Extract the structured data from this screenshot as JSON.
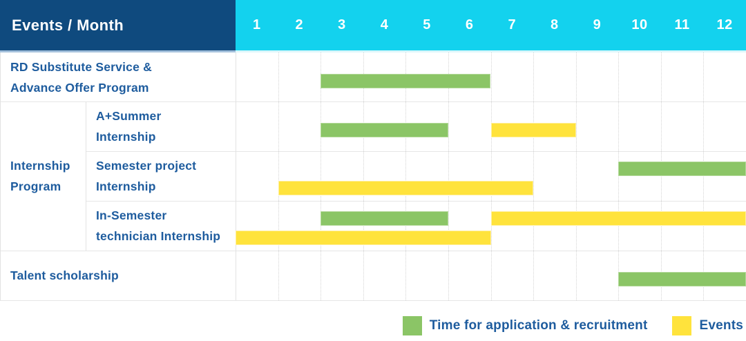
{
  "table": {
    "corner_title": "Events / Month",
    "months": [
      "1",
      "2",
      "3",
      "4",
      "5",
      "6",
      "7",
      "8",
      "9",
      "10",
      "11",
      "12"
    ],
    "rows": {
      "rd_program": {
        "line1": "RD Substitute Service &",
        "line2": "Advance Offer Program"
      },
      "group": {
        "line1": "Internship",
        "line2": "Program"
      },
      "a_summer": {
        "line1": "A+Summer",
        "line2": "Internship"
      },
      "semester_project": {
        "line1": "Semester project",
        "line2": "Internship"
      },
      "in_semester": {
        "line1": "In-Semester",
        "line2": "technician Internship"
      },
      "talent": {
        "label": "Talent scholarship"
      }
    }
  },
  "legend": {
    "application_label": "Time for application & recruitment",
    "events_label": "Events"
  },
  "colors": {
    "header_blue": "#0F4A7E",
    "header_cyan": "#13D2EE",
    "bar_green": "#8BC566",
    "bar_yellow": "#FFE33C",
    "label_blue": "#1E5C9E"
  },
  "chart_data": {
    "type": "bar",
    "subtype": "gantt-schedule",
    "title": "Events / Month",
    "x_axis": {
      "label": "Month",
      "ticks": [
        1,
        2,
        3,
        4,
        5,
        6,
        7,
        8,
        9,
        10,
        11,
        12
      ],
      "range": [
        1,
        12
      ]
    },
    "grid": "vertical-dotted-month-lines",
    "legend_position": "bottom-right",
    "legend": [
      {
        "name": "Time for application & recruitment",
        "color": "#8BC566"
      },
      {
        "name": "Events",
        "color": "#FFE33C"
      }
    ],
    "rows": [
      {
        "event": "RD Substitute Service & Advance Offer Program",
        "group": null,
        "bars": [
          {
            "series": "Time for application & recruitment",
            "type": "application",
            "start_month": 3,
            "end_month": 6,
            "lane": 0
          }
        ]
      },
      {
        "event": "A+Summer Internship",
        "group": "Internship Program",
        "bars": [
          {
            "series": "Time for application & recruitment",
            "type": "application",
            "start_month": 3,
            "end_month": 5,
            "lane": 0
          },
          {
            "series": "Events",
            "type": "event",
            "start_month": 7,
            "end_month": 8,
            "lane": 0
          }
        ]
      },
      {
        "event": "Semester project Internship",
        "group": "Internship Program",
        "bars": [
          {
            "series": "Time for application & recruitment",
            "type": "application",
            "start_month": 10,
            "end_month": 12,
            "lane": 0
          },
          {
            "series": "Events",
            "type": "event",
            "start_month": 2,
            "end_month": 7,
            "lane": 1
          }
        ]
      },
      {
        "event": "In-Semester technician Internship",
        "group": "Internship Program",
        "bars": [
          {
            "series": "Time for application & recruitment",
            "type": "application",
            "start_month": 3,
            "end_month": 5,
            "lane": 0
          },
          {
            "series": "Events",
            "type": "event",
            "start_month": 7,
            "end_month": 12,
            "lane": 0
          },
          {
            "series": "Events",
            "type": "event",
            "start_month": 1,
            "end_month": 6,
            "lane": 1
          }
        ]
      },
      {
        "event": "Talent scholarship",
        "group": null,
        "bars": [
          {
            "series": "Time for application & recruitment",
            "type": "application",
            "start_month": 10,
            "end_month": 12,
            "lane": 0
          }
        ]
      }
    ]
  }
}
